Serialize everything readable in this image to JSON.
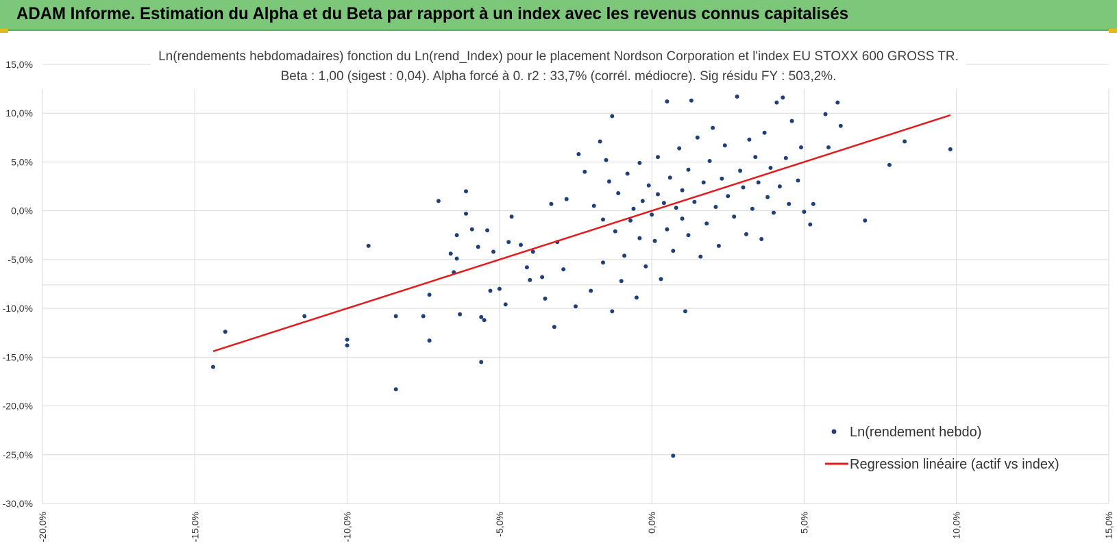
{
  "header": {
    "title": "ADAM Informe. Estimation du Alpha et du Beta par rapport à un index avec les revenus connus capitalisés"
  },
  "colors": {
    "header_bg": "#7dc77a",
    "points": "#1f3f78",
    "regression": "#e41a1c",
    "grid": "#d9d9d9"
  },
  "chart_data": {
    "type": "scatter",
    "title": "Ln(rendements hebdomadaires) fonction du Ln(rend_Index) pour le placement Nordson Corporation et l'index EU STOXX 600 GROSS TR.",
    "subtitle": "Beta : 1,00 (sigest : 0,04).  Alpha forcé à 0. r2 : 33,7% (corrél. médiocre). Sig résidu FY : 503,2%.",
    "xlabel": "",
    "ylabel": "",
    "xlim": [
      -20,
      15
    ],
    "ylim": [
      -30,
      15
    ],
    "x_ticks": [
      "-20,0%",
      "-15,0%",
      "-10,0%",
      "-5,0%",
      "0,0%",
      "5,0%",
      "10,0%",
      "15,0%"
    ],
    "y_ticks": [
      "15,0%",
      "10,0%",
      "5,0%",
      "0,0%",
      "-5,0%",
      "-10,0%",
      "-15,0%",
      "-20,0%",
      "-25,0%",
      "-30,0%"
    ],
    "grid": true,
    "legend_position": "bottom-right",
    "series": [
      {
        "name": "Ln(rendement hebdo)",
        "type": "scatter",
        "points": [
          [
            -14.4,
            -16.0
          ],
          [
            -14.0,
            -12.4
          ],
          [
            -11.4,
            -10.8
          ],
          [
            -10.0,
            -13.2
          ],
          [
            -10.0,
            -13.8
          ],
          [
            -9.3,
            -3.6
          ],
          [
            -8.4,
            -10.8
          ],
          [
            -8.4,
            -18.3
          ],
          [
            -7.5,
            -10.8
          ],
          [
            -7.3,
            -13.3
          ],
          [
            -7.3,
            -8.6
          ],
          [
            -7.0,
            1.0
          ],
          [
            -6.6,
            -4.4
          ],
          [
            -6.5,
            -6.3
          ],
          [
            -6.4,
            -4.9
          ],
          [
            -6.4,
            -2.5
          ],
          [
            -6.3,
            -10.6
          ],
          [
            -6.1,
            2.0
          ],
          [
            -6.1,
            -0.3
          ],
          [
            -5.9,
            -1.9
          ],
          [
            -5.7,
            -3.7
          ],
          [
            -5.6,
            -10.9
          ],
          [
            -5.6,
            -15.5
          ],
          [
            -5.5,
            -11.2
          ],
          [
            -5.4,
            -2.0
          ],
          [
            -5.3,
            -8.2
          ],
          [
            -5.2,
            -4.2
          ],
          [
            -5.0,
            -8.0
          ],
          [
            -4.8,
            -9.6
          ],
          [
            -4.7,
            -3.2
          ],
          [
            -4.6,
            -0.6
          ],
          [
            -4.3,
            -3.5
          ],
          [
            -4.1,
            -5.8
          ],
          [
            -4.0,
            -7.1
          ],
          [
            -3.9,
            -4.2
          ],
          [
            -3.6,
            -6.8
          ],
          [
            -3.5,
            -9.0
          ],
          [
            -3.3,
            0.7
          ],
          [
            -3.2,
            -11.9
          ],
          [
            -3.1,
            -3.2
          ],
          [
            -2.9,
            -6.0
          ],
          [
            -2.8,
            1.2
          ],
          [
            -2.5,
            -9.8
          ],
          [
            -2.4,
            5.8
          ],
          [
            -2.2,
            4.0
          ],
          [
            -2.0,
            -8.2
          ],
          [
            -1.9,
            0.5
          ],
          [
            -1.7,
            7.1
          ],
          [
            -1.6,
            -5.3
          ],
          [
            -1.6,
            -0.9
          ],
          [
            -1.5,
            5.2
          ],
          [
            -1.4,
            3.0
          ],
          [
            -1.3,
            9.7
          ],
          [
            -1.3,
            -10.3
          ],
          [
            -1.2,
            -2.1
          ],
          [
            -1.1,
            1.8
          ],
          [
            -1.0,
            -7.2
          ],
          [
            -0.9,
            -4.6
          ],
          [
            -0.8,
            3.8
          ],
          [
            -0.7,
            -1.0
          ],
          [
            -0.6,
            0.2
          ],
          [
            -0.5,
            -8.9
          ],
          [
            -0.4,
            4.9
          ],
          [
            -0.4,
            -2.8
          ],
          [
            -0.3,
            1.0
          ],
          [
            -0.2,
            -5.7
          ],
          [
            -0.1,
            2.6
          ],
          [
            0.0,
            -0.4
          ],
          [
            0.1,
            -3.1
          ],
          [
            0.2,
            5.5
          ],
          [
            0.2,
            1.7
          ],
          [
            0.3,
            -7.0
          ],
          [
            0.4,
            0.8
          ],
          [
            0.5,
            11.2
          ],
          [
            0.5,
            -1.9
          ],
          [
            0.6,
            3.4
          ],
          [
            0.7,
            -25.1
          ],
          [
            0.7,
            -4.1
          ],
          [
            0.8,
            0.3
          ],
          [
            0.9,
            6.4
          ],
          [
            1.0,
            -0.8
          ],
          [
            1.0,
            2.1
          ],
          [
            1.1,
            -10.3
          ],
          [
            1.2,
            4.2
          ],
          [
            1.2,
            -2.5
          ],
          [
            1.3,
            11.3
          ],
          [
            1.4,
            0.9
          ],
          [
            1.5,
            7.5
          ],
          [
            1.6,
            -4.7
          ],
          [
            1.7,
            2.9
          ],
          [
            1.8,
            -1.3
          ],
          [
            1.9,
            5.1
          ],
          [
            2.0,
            8.5
          ],
          [
            2.1,
            0.4
          ],
          [
            2.2,
            -3.6
          ],
          [
            2.3,
            3.3
          ],
          [
            2.4,
            6.7
          ],
          [
            2.5,
            1.5
          ],
          [
            2.7,
            -0.6
          ],
          [
            2.8,
            11.7
          ],
          [
            2.9,
            4.1
          ],
          [
            3.0,
            2.4
          ],
          [
            3.1,
            -2.4
          ],
          [
            3.2,
            7.3
          ],
          [
            3.3,
            0.2
          ],
          [
            3.4,
            5.5
          ],
          [
            3.5,
            2.9
          ],
          [
            3.6,
            -2.9
          ],
          [
            3.7,
            8.0
          ],
          [
            3.8,
            1.4
          ],
          [
            3.9,
            4.4
          ],
          [
            4.0,
            -0.2
          ],
          [
            4.1,
            11.1
          ],
          [
            4.2,
            2.5
          ],
          [
            4.3,
            11.6
          ],
          [
            4.4,
            5.4
          ],
          [
            4.5,
            0.7
          ],
          [
            4.6,
            9.2
          ],
          [
            4.8,
            3.1
          ],
          [
            4.9,
            6.5
          ],
          [
            5.0,
            -0.1
          ],
          [
            5.2,
            -1.4
          ],
          [
            5.3,
            0.7
          ],
          [
            5.7,
            9.9
          ],
          [
            5.8,
            6.5
          ],
          [
            6.1,
            11.1
          ],
          [
            6.2,
            8.7
          ],
          [
            7.0,
            -1.0
          ],
          [
            7.8,
            4.7
          ],
          [
            8.3,
            7.1
          ],
          [
            9.8,
            6.3
          ]
        ]
      },
      {
        "name": "Regression linéaire (actif vs index)",
        "type": "line",
        "points": [
          [
            -14.4,
            -14.4
          ],
          [
            9.8,
            9.8
          ]
        ]
      }
    ]
  }
}
